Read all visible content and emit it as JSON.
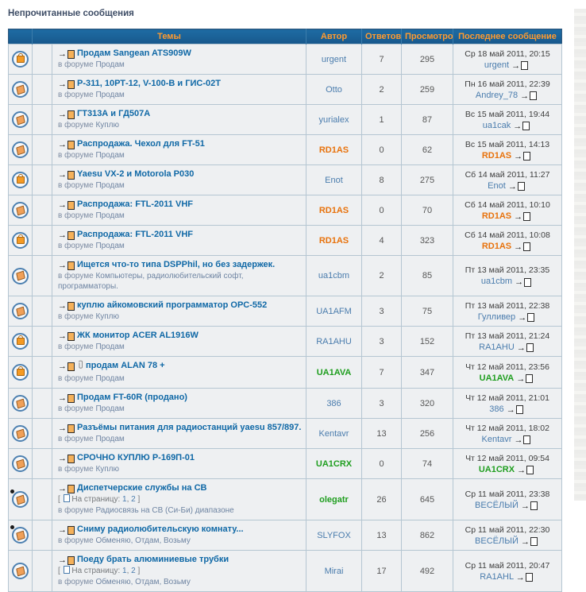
{
  "page": {
    "title": "Непрочитанные сообщения"
  },
  "colors": {
    "header_bg": "#1a6296",
    "header_text": "#ff9b30",
    "row_bg": "#eef0f2",
    "title_link": "#0f68a6",
    "author_blue": "#4a7cad",
    "author_orange": "#e8720c",
    "author_green": "#1f9e1f",
    "border_outer": "#315a7d",
    "border_cell": "#b5c6d2"
  },
  "table": {
    "columns": {
      "topic": "Темы",
      "author": "Автор",
      "replies": "Ответов",
      "views": "Просмотров",
      "last": "Последнее сообщение"
    },
    "forum_prefix": "в форуме",
    "pagination_label": "На страницу:",
    "rows": [
      {
        "icon": "bag",
        "title": "Продам Sangean ATS909W",
        "attachment": false,
        "pages": null,
        "forum": "Продам",
        "author": "urgent",
        "author_style": "blue",
        "replies": "7",
        "views": "295",
        "last_date": "Ср 18 май 2011, 20:15",
        "last_by": "urgent",
        "last_by_style": "blue"
      },
      {
        "icon": "tilt",
        "title": "Р-311, 10РТ-12, V-100-В и ГИС-02Т",
        "attachment": false,
        "pages": null,
        "forum": "Продам",
        "author": "Otto",
        "author_style": "blue",
        "replies": "2",
        "views": "259",
        "last_date": "Пн 16 май 2011, 22:39",
        "last_by": "Andrey_78",
        "last_by_style": "blue"
      },
      {
        "icon": "tilt",
        "title": "ГТ313А и ГД507А",
        "attachment": false,
        "pages": null,
        "forum": "Куплю",
        "author": "yurialex",
        "author_style": "blue",
        "replies": "1",
        "views": "87",
        "last_date": "Вс 15 май 2011, 19:44",
        "last_by": "ua1cak",
        "last_by_style": "blue"
      },
      {
        "icon": "tilt",
        "title": "Распродажа. Чехол для FT-51",
        "attachment": false,
        "pages": null,
        "forum": "Продам",
        "author": "RD1AS",
        "author_style": "orange",
        "replies": "0",
        "views": "62",
        "last_date": "Вс 15 май 2011, 14:13",
        "last_by": "RD1AS",
        "last_by_style": "orange"
      },
      {
        "icon": "bag",
        "title": "Yaesu VX-2 и Motorola P030",
        "attachment": false,
        "pages": null,
        "forum": "Продам",
        "author": "Enot",
        "author_style": "blue",
        "replies": "8",
        "views": "275",
        "last_date": "Сб 14 май 2011, 11:27",
        "last_by": "Enot",
        "last_by_style": "blue"
      },
      {
        "icon": "tilt",
        "title": "Распродажа: FTL-2011 VHF",
        "attachment": false,
        "pages": null,
        "forum": "Продам",
        "author": "RD1AS",
        "author_style": "orange",
        "replies": "0",
        "views": "70",
        "last_date": "Сб 14 май 2011, 10:10",
        "last_by": "RD1AS",
        "last_by_style": "orange"
      },
      {
        "icon": "bag",
        "title": "Распродажа: FTL-2011 VHF",
        "attachment": false,
        "pages": null,
        "forum": "Продам",
        "author": "RD1AS",
        "author_style": "orange",
        "replies": "4",
        "views": "323",
        "last_date": "Сб 14 май 2011, 10:08",
        "last_by": "RD1AS",
        "last_by_style": "orange"
      },
      {
        "icon": "tilt",
        "title": "Ищется что-то типа DSPPhil, но без задержек.",
        "attachment": false,
        "pages": null,
        "forum": "Компьютеры, радиолюбительский софт, программаторы.",
        "author": "ua1cbm",
        "author_style": "blue",
        "replies": "2",
        "views": "85",
        "last_date": "Пт 13 май 2011, 23:35",
        "last_by": "ua1cbm",
        "last_by_style": "blue"
      },
      {
        "icon": "tilt",
        "title": "куплю айкомовский программатор OPC-552",
        "attachment": false,
        "pages": null,
        "forum": "Куплю",
        "author": "UA1AFM",
        "author_style": "blue",
        "replies": "3",
        "views": "75",
        "last_date": "Пт 13 май 2011, 22:38",
        "last_by": "Гулливер",
        "last_by_style": "blue"
      },
      {
        "icon": "bag",
        "title": "ЖК монитор ACER AL1916W",
        "attachment": false,
        "pages": null,
        "forum": "Продам",
        "author": "RA1AHU",
        "author_style": "blue",
        "replies": "3",
        "views": "152",
        "last_date": "Пт 13 май 2011, 21:24",
        "last_by": "RA1AHU",
        "last_by_style": "blue"
      },
      {
        "icon": "bag",
        "title": "продам ALAN 78 +",
        "attachment": true,
        "pages": null,
        "forum": "Продам",
        "author": "UA1AVA",
        "author_style": "green",
        "replies": "7",
        "views": "347",
        "last_date": "Чт 12 май 2011, 23:56",
        "last_by": "UA1AVA",
        "last_by_style": "green"
      },
      {
        "icon": "tilt",
        "title": "Продам FT-60R (продано)",
        "attachment": false,
        "pages": null,
        "forum": "Продам",
        "author": "386",
        "author_style": "blue",
        "replies": "3",
        "views": "320",
        "last_date": "Чт 12 май 2011, 21:01",
        "last_by": "386",
        "last_by_style": "blue"
      },
      {
        "icon": "tilt",
        "title": "Разъёмы питания для радиостанций yaesu 857/897.",
        "attachment": false,
        "pages": null,
        "forum": "Продам",
        "author": "Kentavr",
        "author_style": "blue",
        "replies": "13",
        "views": "256",
        "last_date": "Чт 12 май 2011, 18:02",
        "last_by": "Kentavr",
        "last_by_style": "blue"
      },
      {
        "icon": "tilt",
        "title": "СРОЧНО КУПЛЮ Р-169П-01",
        "attachment": false,
        "pages": null,
        "forum": "Куплю",
        "author": "UA1CRX",
        "author_style": "green",
        "replies": "0",
        "views": "74",
        "last_date": "Чт 12 май 2011, 09:54",
        "last_by": "UA1CRX",
        "last_by_style": "green"
      },
      {
        "icon": "tilt-dot",
        "title": "Диспетчерские службы на СВ",
        "attachment": false,
        "pages": [
          "1",
          "2"
        ],
        "forum": "Радиосвязь на СВ (Си-Би) диапазоне",
        "author": "olegatr",
        "author_style": "green",
        "replies": "26",
        "views": "645",
        "last_date": "Ср 11 май 2011, 23:38",
        "last_by": "ВЕСЁЛЫЙ",
        "last_by_style": "blue"
      },
      {
        "icon": "tilt-dot",
        "title": "Сниму радиолюбительскую комнату...",
        "attachment": false,
        "pages": null,
        "forum": "Обменяю, Отдам, Возьму",
        "author": "SLYFOX",
        "author_style": "blue",
        "replies": "13",
        "views": "862",
        "last_date": "Ср 11 май 2011, 22:30",
        "last_by": "ВЕСЁЛЫЙ",
        "last_by_style": "blue"
      },
      {
        "icon": "tilt",
        "title": "Поеду брать алюминиевые трубки",
        "attachment": false,
        "pages": [
          "1",
          "2"
        ],
        "forum": "Обменяю, Отдам, Возьму",
        "author": "Mirai",
        "author_style": "blue",
        "replies": "17",
        "views": "492",
        "last_date": "Ср 11 май 2011, 20:47",
        "last_by": "RA1AHL",
        "last_by_style": "blue"
      }
    ]
  }
}
